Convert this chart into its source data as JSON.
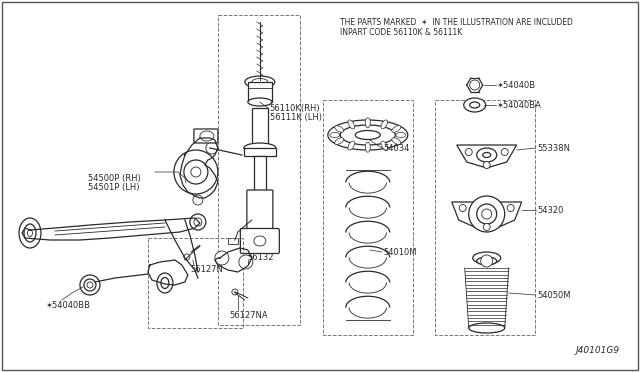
{
  "bg_color": "#ffffff",
  "line_color": "#2a2a2a",
  "title_line1": "THE PARTS MARKED  ✶  IN THE ILLUSTRATION ARE INCLUDED",
  "title_line2": "INPART CODE 56110K & 56111K",
  "diagram_id": "J40101G9",
  "note_symbol": "✶"
}
